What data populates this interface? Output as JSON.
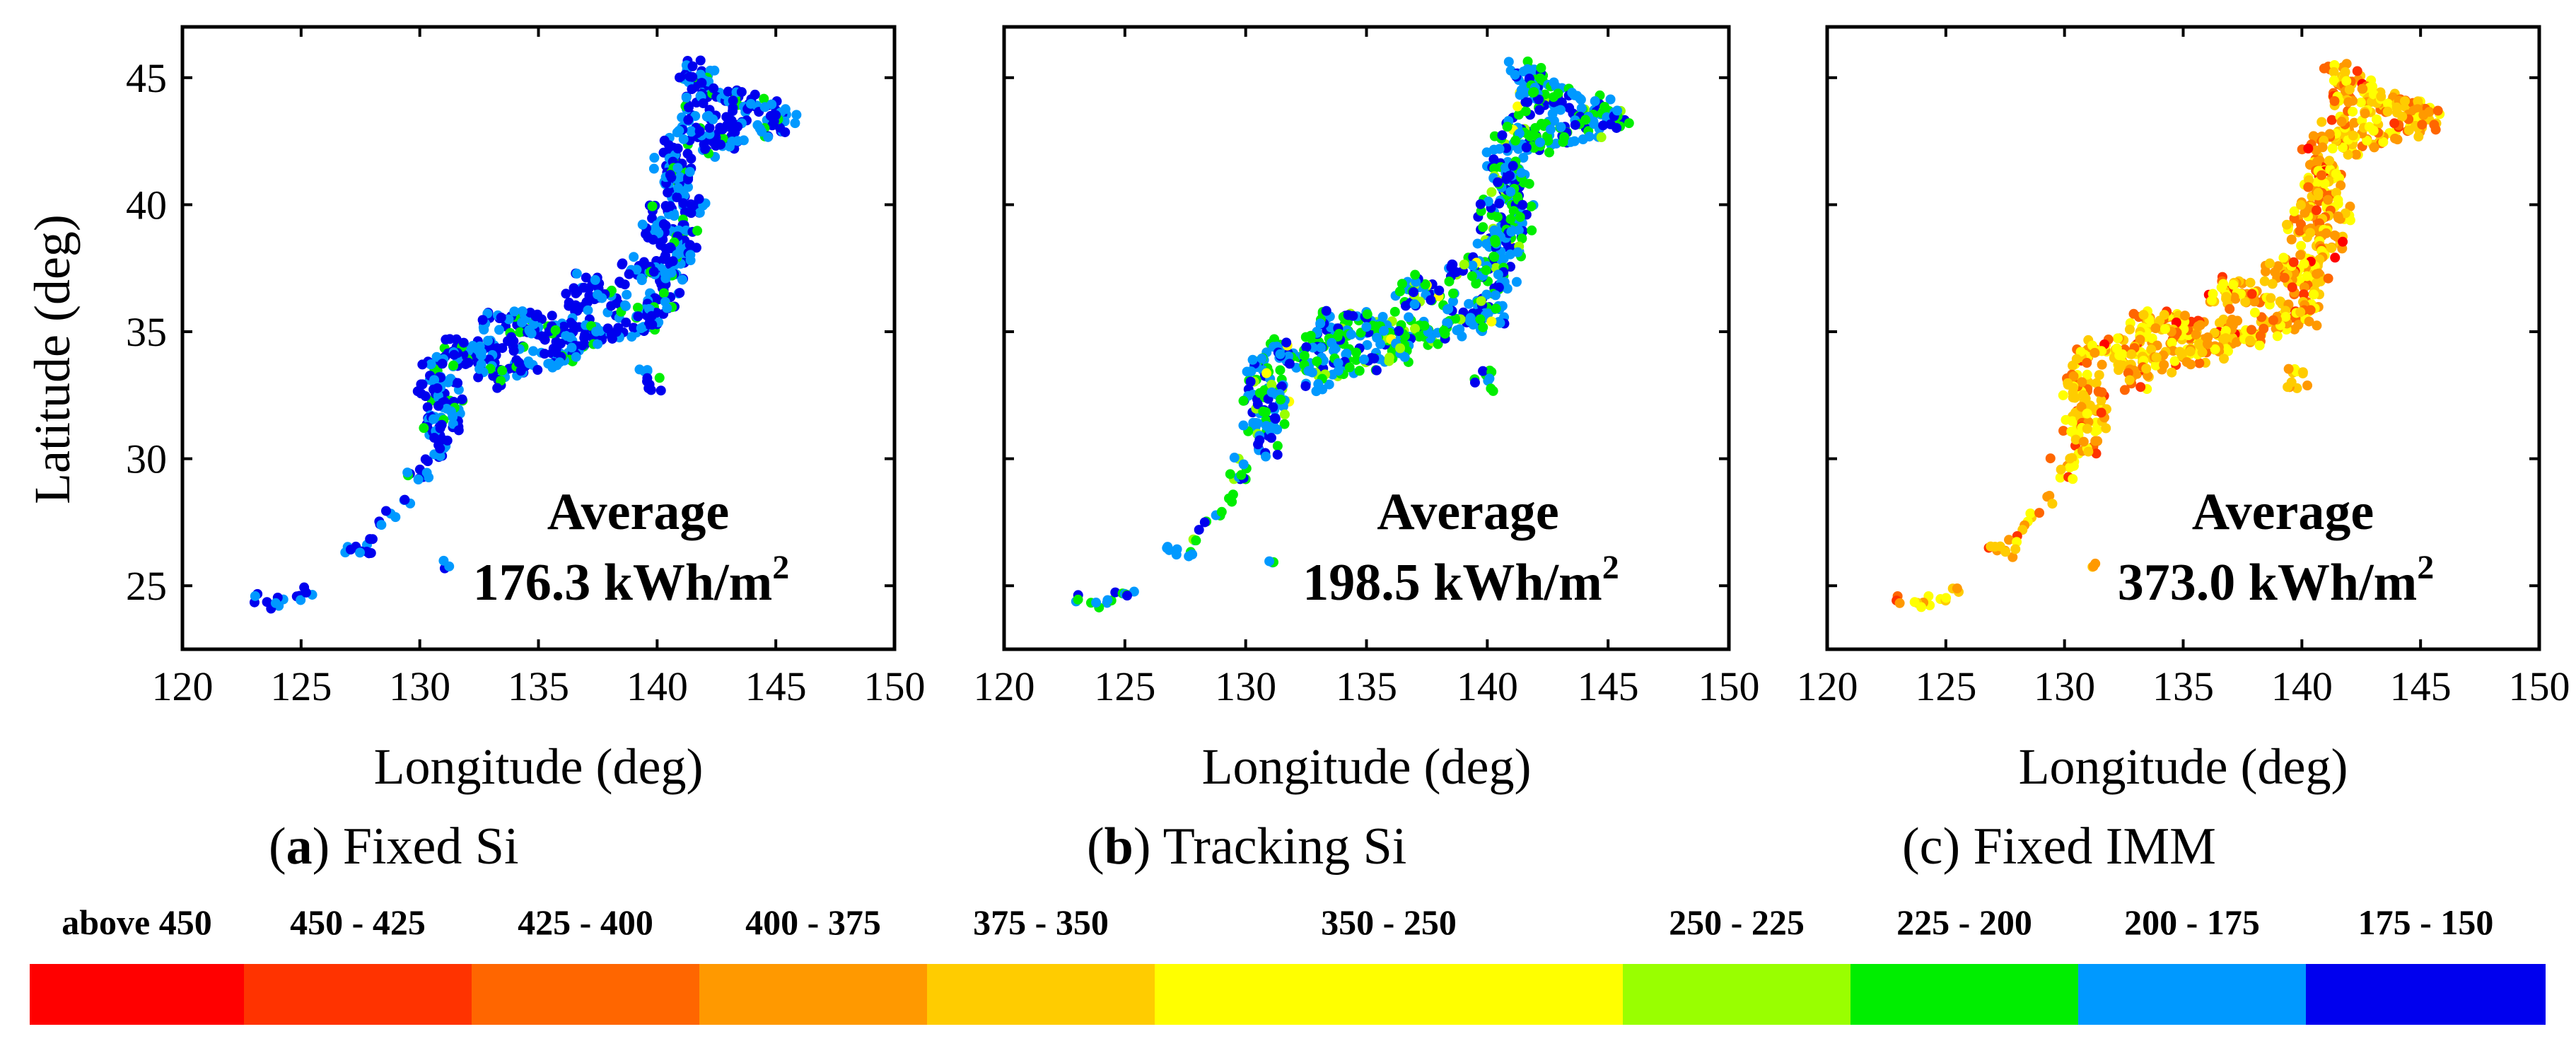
{
  "colors": {
    "above450": "#ff0000",
    "c450_425": "#ff3300",
    "c425_400": "#ff6600",
    "c400_375": "#ff9900",
    "c375_350": "#ffcc00",
    "c350_250": "#ffff00",
    "c250_225": "#99ff00",
    "c225_200": "#00ee00",
    "c200_175": "#0099ff",
    "c175_150": "#0000ee"
  },
  "chart_data": [
    {
      "id": "a",
      "type": "scatter",
      "caption_letter": "a",
      "caption_text": "Fixed Si",
      "xlabel": "Longitude (deg)",
      "ylabel": "Latitude (deg)",
      "xlim": [
        120,
        150
      ],
      "ylim": [
        22.5,
        47
      ],
      "xticks": [
        "120",
        "125",
        "130",
        "135",
        "140",
        "145",
        "150"
      ],
      "yticks": [
        "25",
        "30",
        "35",
        "40",
        "45"
      ],
      "annotation_title": "Average",
      "annotation_value": "176.3 kWh/m",
      "annotation_sup": "2",
      "average": 176.3,
      "palette": [
        "c175_150",
        "c200_175",
        "c225_200"
      ],
      "weights": [
        0.55,
        0.38,
        0.07
      ]
    },
    {
      "id": "b",
      "type": "scatter",
      "caption_letter": "b",
      "caption_text": "Tracking Si",
      "xlabel": "Longitude (deg)",
      "ylabel": "",
      "xlim": [
        120,
        150
      ],
      "ylim": [
        22.5,
        47
      ],
      "xticks": [
        "120",
        "125",
        "130",
        "135",
        "140",
        "145",
        "150"
      ],
      "yticks": [],
      "annotation_title": "Average",
      "annotation_value": "198.5 kWh/m",
      "annotation_sup": "2",
      "average": 198.5,
      "palette": [
        "c175_150",
        "c200_175",
        "c225_200",
        "c250_225",
        "c350_250"
      ],
      "weights": [
        0.22,
        0.36,
        0.34,
        0.06,
        0.02
      ]
    },
    {
      "id": "c",
      "type": "scatter",
      "caption_letter": "c",
      "caption_text": "Fixed IMM",
      "xlabel": "Longitude (deg)",
      "ylabel": "",
      "xlim": [
        120,
        150
      ],
      "ylim": [
        22.5,
        47
      ],
      "xticks": [
        "120",
        "125",
        "130",
        "135",
        "140",
        "145",
        "150"
      ],
      "yticks": [],
      "annotation_title": "Average",
      "annotation_value": "373.0 kWh/m",
      "annotation_sup": "2",
      "average": 373.0,
      "palette": [
        "c350_250",
        "c375_350",
        "c400_375",
        "c425_400",
        "c450_425",
        "above450"
      ],
      "weights": [
        0.28,
        0.28,
        0.24,
        0.14,
        0.05,
        0.01
      ]
    }
  ],
  "geo_points": [
    [
      141.4,
      45.3
    ],
    [
      142.0,
      45.0
    ],
    [
      141.8,
      44.6
    ],
    [
      142.4,
      44.5
    ],
    [
      142.9,
      44.2
    ],
    [
      143.6,
      44.0
    ],
    [
      144.3,
      43.9
    ],
    [
      145.0,
      43.7
    ],
    [
      145.4,
      43.3
    ],
    [
      144.6,
      43.1
    ],
    [
      143.6,
      42.9
    ],
    [
      142.9,
      42.6
    ],
    [
      142.2,
      42.3
    ],
    [
      141.7,
      42.6
    ],
    [
      141.3,
      43.1
    ],
    [
      140.8,
      42.4
    ],
    [
      140.4,
      41.8
    ],
    [
      140.8,
      41.2
    ],
    [
      141.2,
      40.8
    ],
    [
      140.9,
      40.2
    ],
    [
      141.5,
      39.8
    ],
    [
      141.0,
      39.2
    ],
    [
      141.3,
      38.6
    ],
    [
      140.5,
      38.7
    ],
    [
      140.9,
      38.0
    ],
    [
      140.3,
      37.6
    ],
    [
      139.9,
      37.3
    ],
    [
      140.7,
      36.9
    ],
    [
      139.4,
      37.6
    ],
    [
      138.9,
      37.3
    ],
    [
      140.1,
      36.3
    ],
    [
      139.6,
      35.8
    ],
    [
      139.4,
      35.4
    ],
    [
      140.2,
      35.6
    ],
    [
      138.8,
      35.2
    ],
    [
      138.2,
      36.2
    ],
    [
      137.6,
      36.6
    ],
    [
      137.0,
      36.9
    ],
    [
      136.6,
      36.2
    ],
    [
      136.9,
      35.2
    ],
    [
      137.4,
      34.8
    ],
    [
      136.4,
      34.6
    ],
    [
      135.8,
      35.0
    ],
    [
      135.5,
      34.6
    ],
    [
      135.2,
      35.2
    ],
    [
      134.6,
      35.4
    ],
    [
      133.9,
      35.4
    ],
    [
      133.2,
      35.4
    ],
    [
      134.2,
      34.7
    ],
    [
      133.4,
      34.5
    ],
    [
      132.7,
      34.4
    ],
    [
      132.1,
      34.0
    ],
    [
      131.4,
      34.3
    ],
    [
      130.9,
      33.9
    ],
    [
      133.6,
      33.6
    ],
    [
      132.8,
      33.7
    ],
    [
      134.3,
      33.8
    ],
    [
      133.0,
      33.1
    ],
    [
      131.1,
      33.0
    ],
    [
      130.5,
      33.5
    ],
    [
      130.3,
      32.6
    ],
    [
      131.4,
      32.2
    ],
    [
      130.8,
      31.7
    ],
    [
      130.4,
      31.2
    ],
    [
      131.2,
      31.5
    ],
    [
      130.9,
      30.5
    ],
    [
      129.9,
      29.6
    ],
    [
      129.4,
      28.4
    ],
    [
      128.8,
      27.8
    ],
    [
      128.3,
      27.4
    ],
    [
      127.9,
      26.8
    ],
    [
      127.7,
      26.3
    ],
    [
      127.3,
      26.4
    ],
    [
      126.9,
      26.5
    ],
    [
      124.2,
      24.4
    ],
    [
      124.8,
      24.6
    ],
    [
      125.3,
      24.8
    ],
    [
      123.8,
      24.2
    ],
    [
      123.1,
      24.5
    ],
    [
      131.2,
      25.8
    ],
    [
      139.8,
      33.1
    ],
    [
      137.9,
      34.9
    ],
    [
      136.2,
      34.1
    ],
    [
      135.4,
      33.9
    ],
    [
      141.7,
      44.1
    ],
    [
      142.6,
      43.3
    ],
    [
      140.1,
      39.8
    ],
    [
      139.9,
      38.9
    ],
    [
      140.6,
      40.7
    ],
    [
      141.1,
      41.4
    ]
  ],
  "legend": [
    {
      "label": "above 450",
      "color_key": "above450"
    },
    {
      "label": "450 - 425",
      "color_key": "c450_425"
    },
    {
      "label": "425 - 400",
      "color_key": "c425_400"
    },
    {
      "label": "400 - 375",
      "color_key": "c400_375"
    },
    {
      "label": "375 - 350",
      "color_key": "c375_350"
    },
    {
      "label": "350 - 250",
      "color_key": "c350_250"
    },
    {
      "label": "250 - 225",
      "color_key": "c250_225"
    },
    {
      "label": "225 - 200",
      "color_key": "c225_200"
    },
    {
      "label": "200 - 175",
      "color_key": "c200_175"
    },
    {
      "label": "175 - 150",
      "color_key": "c175_150"
    }
  ]
}
